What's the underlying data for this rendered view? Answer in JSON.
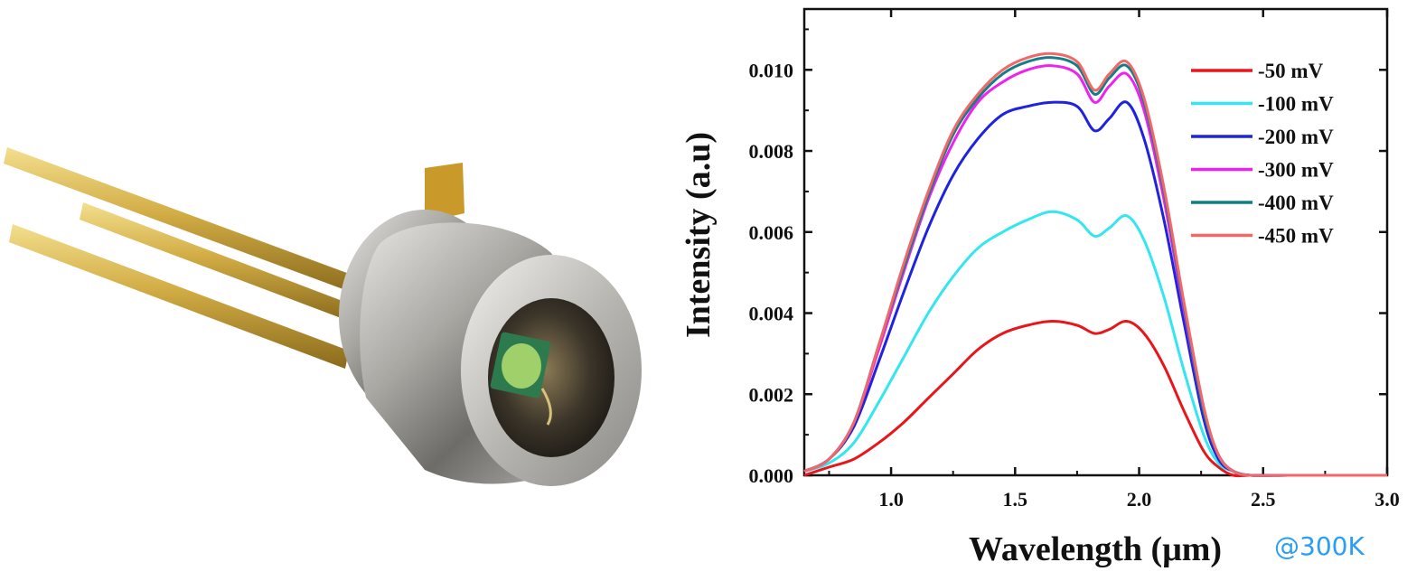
{
  "chart_data": {
    "type": "line",
    "xlabel": "Wavelength (μm)",
    "ylabel": "Intensity (a.u)",
    "xlim": [
      0.65,
      3.0
    ],
    "ylim": [
      0.0,
      0.0115
    ],
    "x_ticks": [
      "1.0",
      "1.5",
      "2.0",
      "2.5",
      "3.0"
    ],
    "y_ticks": [
      "0.000",
      "0.002",
      "0.004",
      "0.006",
      "0.008",
      "0.010"
    ],
    "annotation": "@300K",
    "legend_position": "top-right",
    "grid": false,
    "x": [
      0.65,
      0.75,
      0.85,
      0.95,
      1.05,
      1.15,
      1.25,
      1.35,
      1.45,
      1.55,
      1.65,
      1.75,
      1.82,
      1.88,
      1.95,
      2.02,
      2.1,
      2.18,
      2.26,
      2.32,
      2.38,
      2.45,
      2.6,
      2.8,
      3.0
    ],
    "series": [
      {
        "name": "-50 mV",
        "color": "#e8161b",
        "values": [
          0.0,
          0.0002,
          0.0004,
          0.0008,
          0.0013,
          0.0019,
          0.0025,
          0.0031,
          0.0035,
          0.0037,
          0.0038,
          0.0037,
          0.0035,
          0.0036,
          0.0038,
          0.0035,
          0.0027,
          0.0016,
          0.0006,
          0.0002,
          0.0,
          0.0,
          0.0,
          0.0,
          0.0
        ]
      },
      {
        "name": "-100 mV",
        "color": "#33e6ef",
        "values": [
          0.0001,
          0.0003,
          0.0008,
          0.0018,
          0.0029,
          0.004,
          0.0049,
          0.0056,
          0.006,
          0.0063,
          0.0065,
          0.0063,
          0.0059,
          0.0061,
          0.0064,
          0.0058,
          0.0044,
          0.0026,
          0.001,
          0.0003,
          0.0001,
          0.0,
          0.0,
          0.0,
          0.0
        ]
      },
      {
        "name": "-200 mV",
        "color": "#1f23e0",
        "values": [
          0.0001,
          0.0004,
          0.0012,
          0.0028,
          0.0045,
          0.0061,
          0.0074,
          0.0083,
          0.0089,
          0.0091,
          0.0092,
          0.0091,
          0.0085,
          0.0088,
          0.0092,
          0.0083,
          0.0063,
          0.0038,
          0.0014,
          0.0004,
          0.0001,
          0.0,
          0.0,
          0.0,
          0.0
        ]
      },
      {
        "name": "-300 mV",
        "color": "#ee22ee",
        "values": [
          0.0001,
          0.0004,
          0.0013,
          0.0031,
          0.005,
          0.0068,
          0.0082,
          0.0092,
          0.0097,
          0.01,
          0.0101,
          0.0099,
          0.0092,
          0.0096,
          0.0099,
          0.009,
          0.0068,
          0.0041,
          0.0016,
          0.0005,
          0.0001,
          0.0,
          0.0,
          0.0,
          0.0
        ]
      },
      {
        "name": "-400 mV",
        "color": "#137e86",
        "values": [
          0.0001,
          0.0004,
          0.0013,
          0.0032,
          0.0051,
          0.0069,
          0.0084,
          0.0093,
          0.0099,
          0.0102,
          0.0103,
          0.0101,
          0.0094,
          0.0098,
          0.0101,
          0.0092,
          0.007,
          0.0042,
          0.0016,
          0.0005,
          0.0001,
          0.0,
          0.0,
          0.0,
          0.0
        ]
      },
      {
        "name": "-450 mV",
        "color": "#f26868",
        "values": [
          0.0001,
          0.0004,
          0.0013,
          0.0032,
          0.0052,
          0.007,
          0.0085,
          0.0094,
          0.01,
          0.0103,
          0.0104,
          0.0102,
          0.0095,
          0.0099,
          0.0102,
          0.0093,
          0.0071,
          0.0043,
          0.0017,
          0.0005,
          0.0001,
          0.0,
          0.0,
          0.0,
          0.0
        ]
      }
    ]
  },
  "photo": {
    "pin_color": "#c9a43a",
    "body_color": "#b4b2ad",
    "sensor_color": "#9fd06a"
  }
}
